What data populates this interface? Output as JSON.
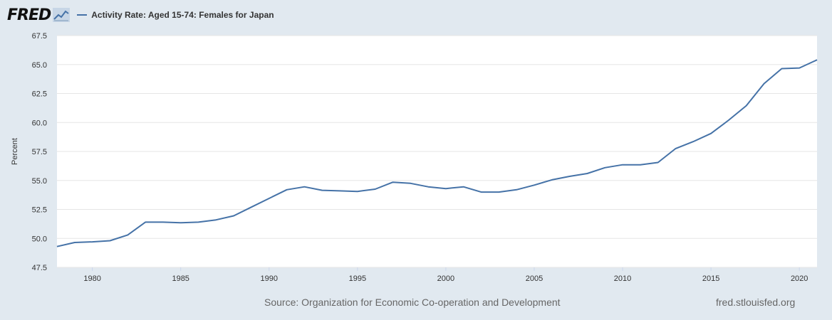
{
  "header": {
    "logo_text": "FRED",
    "legend_label": "Activity Rate: Aged 15-74: Females for Japan",
    "series_color": "#4572a7"
  },
  "footer": {
    "source": "Source: Organization for Economic Co-operation and Development",
    "url": "fred.stlouisfed.org"
  },
  "chart_data": {
    "type": "line",
    "title": "",
    "xlabel": "",
    "ylabel": "Percent",
    "xlim": [
      1978,
      2021
    ],
    "ylim": [
      47.5,
      67.5
    ],
    "yticks": [
      47.5,
      50.0,
      52.5,
      55.0,
      57.5,
      60.0,
      62.5,
      65.0,
      67.5
    ],
    "xticks": [
      1980,
      1985,
      1990,
      1995,
      2000,
      2005,
      2010,
      2015,
      2020
    ],
    "grid": true,
    "legend_position": "top-left",
    "series": [
      {
        "name": "Activity Rate: Aged 15-74: Females for Japan",
        "color": "#4572a7",
        "x": [
          1978,
          1979,
          1980,
          1981,
          1982,
          1983,
          1984,
          1985,
          1986,
          1987,
          1988,
          1989,
          1990,
          1991,
          1992,
          1993,
          1994,
          1995,
          1996,
          1997,
          1998,
          1999,
          2000,
          2001,
          2002,
          2003,
          2004,
          2005,
          2006,
          2007,
          2008,
          2009,
          2010,
          2011,
          2012,
          2013,
          2014,
          2015,
          2016,
          2017,
          2018,
          2019,
          2020,
          2021
        ],
        "values": [
          49.3,
          49.65,
          49.7,
          49.8,
          50.3,
          51.4,
          51.4,
          51.35,
          51.4,
          51.6,
          51.95,
          52.7,
          53.45,
          54.2,
          54.45,
          54.15,
          54.1,
          54.05,
          54.25,
          54.85,
          54.75,
          54.45,
          54.3,
          54.45,
          54.0,
          54.0,
          54.2,
          54.6,
          55.05,
          55.35,
          55.6,
          56.1,
          56.35,
          56.35,
          56.55,
          57.75,
          58.35,
          59.05,
          60.2,
          61.45,
          63.35,
          64.65,
          64.7,
          65.4
        ]
      }
    ]
  }
}
